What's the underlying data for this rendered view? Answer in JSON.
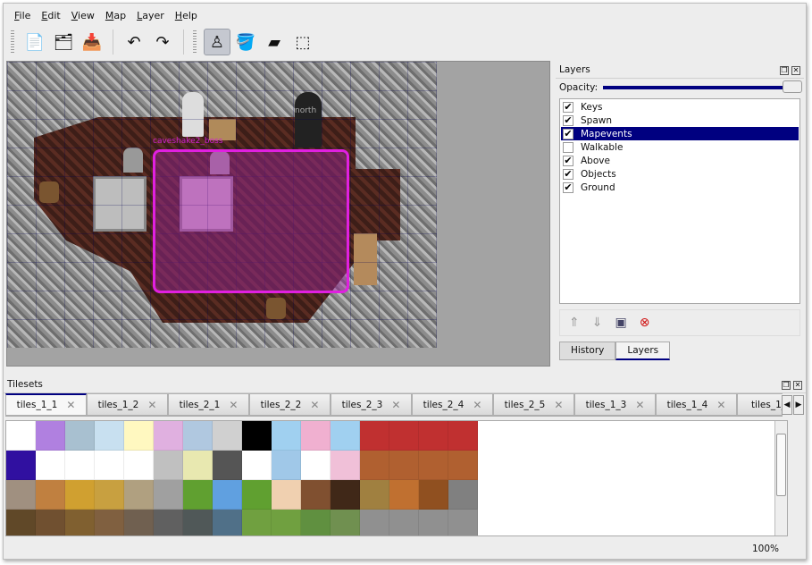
{
  "menu": [
    "File",
    "Edit",
    "View",
    "Map",
    "Layer",
    "Help"
  ],
  "toolbar": [
    {
      "name": "new-icon",
      "glyph": "📄"
    },
    {
      "name": "open-icon",
      "glyph": "🗂"
    },
    {
      "name": "save-icon",
      "glyph": "📥"
    },
    {
      "name": "undo-icon",
      "glyph": "↶"
    },
    {
      "name": "redo-icon",
      "glyph": "↷"
    },
    {
      "name": "stamp-brush-icon",
      "glyph": "♙",
      "active": true
    },
    {
      "name": "bucket-fill-icon",
      "glyph": "🪣"
    },
    {
      "name": "eraser-icon",
      "glyph": "▰"
    },
    {
      "name": "rect-select-icon",
      "glyph": "⬚"
    }
  ],
  "map": {
    "labels": {
      "north": "north",
      "event": "caveshake2_boss"
    },
    "selection_color": "#e020e0"
  },
  "layers_panel": {
    "title": "Layers",
    "opacity_label": "Opacity:",
    "opacity": 1.0,
    "layers": [
      {
        "name": "Keys",
        "visible": true
      },
      {
        "name": "Spawn",
        "visible": true
      },
      {
        "name": "Mapevents",
        "visible": true,
        "selected": true
      },
      {
        "name": "Walkable",
        "visible": false
      },
      {
        "name": "Above",
        "visible": true
      },
      {
        "name": "Objects",
        "visible": true
      },
      {
        "name": "Ground",
        "visible": true
      }
    ],
    "tabs": [
      "History",
      "Layers"
    ],
    "active_tab": "Layers"
  },
  "tilesets_panel": {
    "title": "Tilesets",
    "tabs": [
      "tiles_1_1",
      "tiles_1_2",
      "tiles_2_1",
      "tiles_2_2",
      "tiles_2_3",
      "tiles_2_4",
      "tiles_2_5",
      "tiles_1_3",
      "tiles_1_4",
      "tiles_1_"
    ],
    "active_tab": "tiles_1_1"
  },
  "status": {
    "zoom": "100%"
  }
}
